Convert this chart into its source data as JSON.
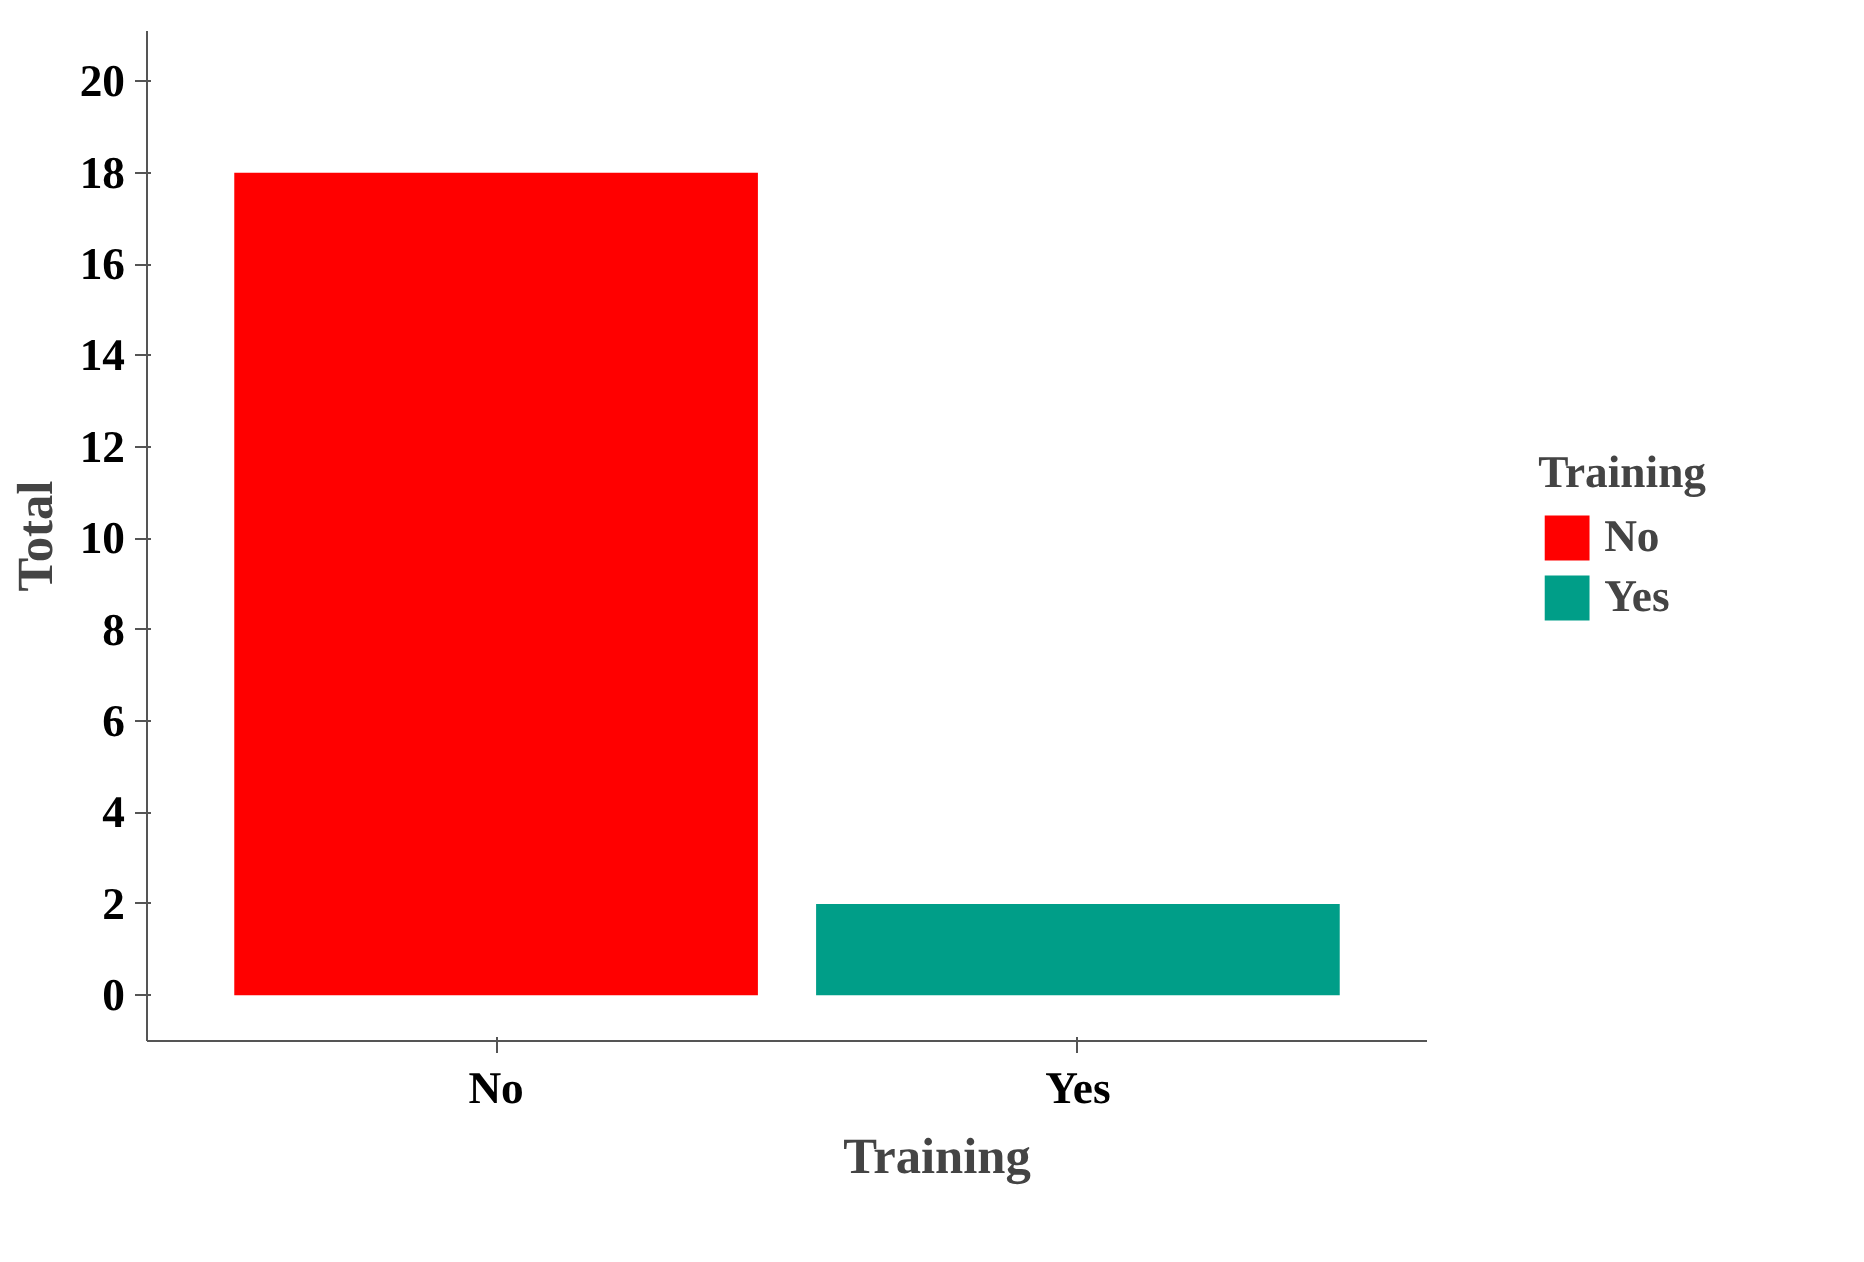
{
  "chart_data": {
    "type": "bar",
    "xlabel": "Training",
    "ylabel": "Total",
    "legend_title": "Training",
    "categories": [
      "No",
      "Yes"
    ],
    "series": [
      {
        "name": "No",
        "color": "#ff0000",
        "values": [
          18,
          null
        ]
      },
      {
        "name": "Yes",
        "color": "#009e88",
        "values": [
          null,
          2
        ]
      }
    ],
    "ylim": [
      -1,
      21.1
    ],
    "yticks": [
      0,
      2,
      4,
      6,
      8,
      10,
      12,
      14,
      16,
      18,
      20
    ],
    "grid": false,
    "legend": "right"
  }
}
